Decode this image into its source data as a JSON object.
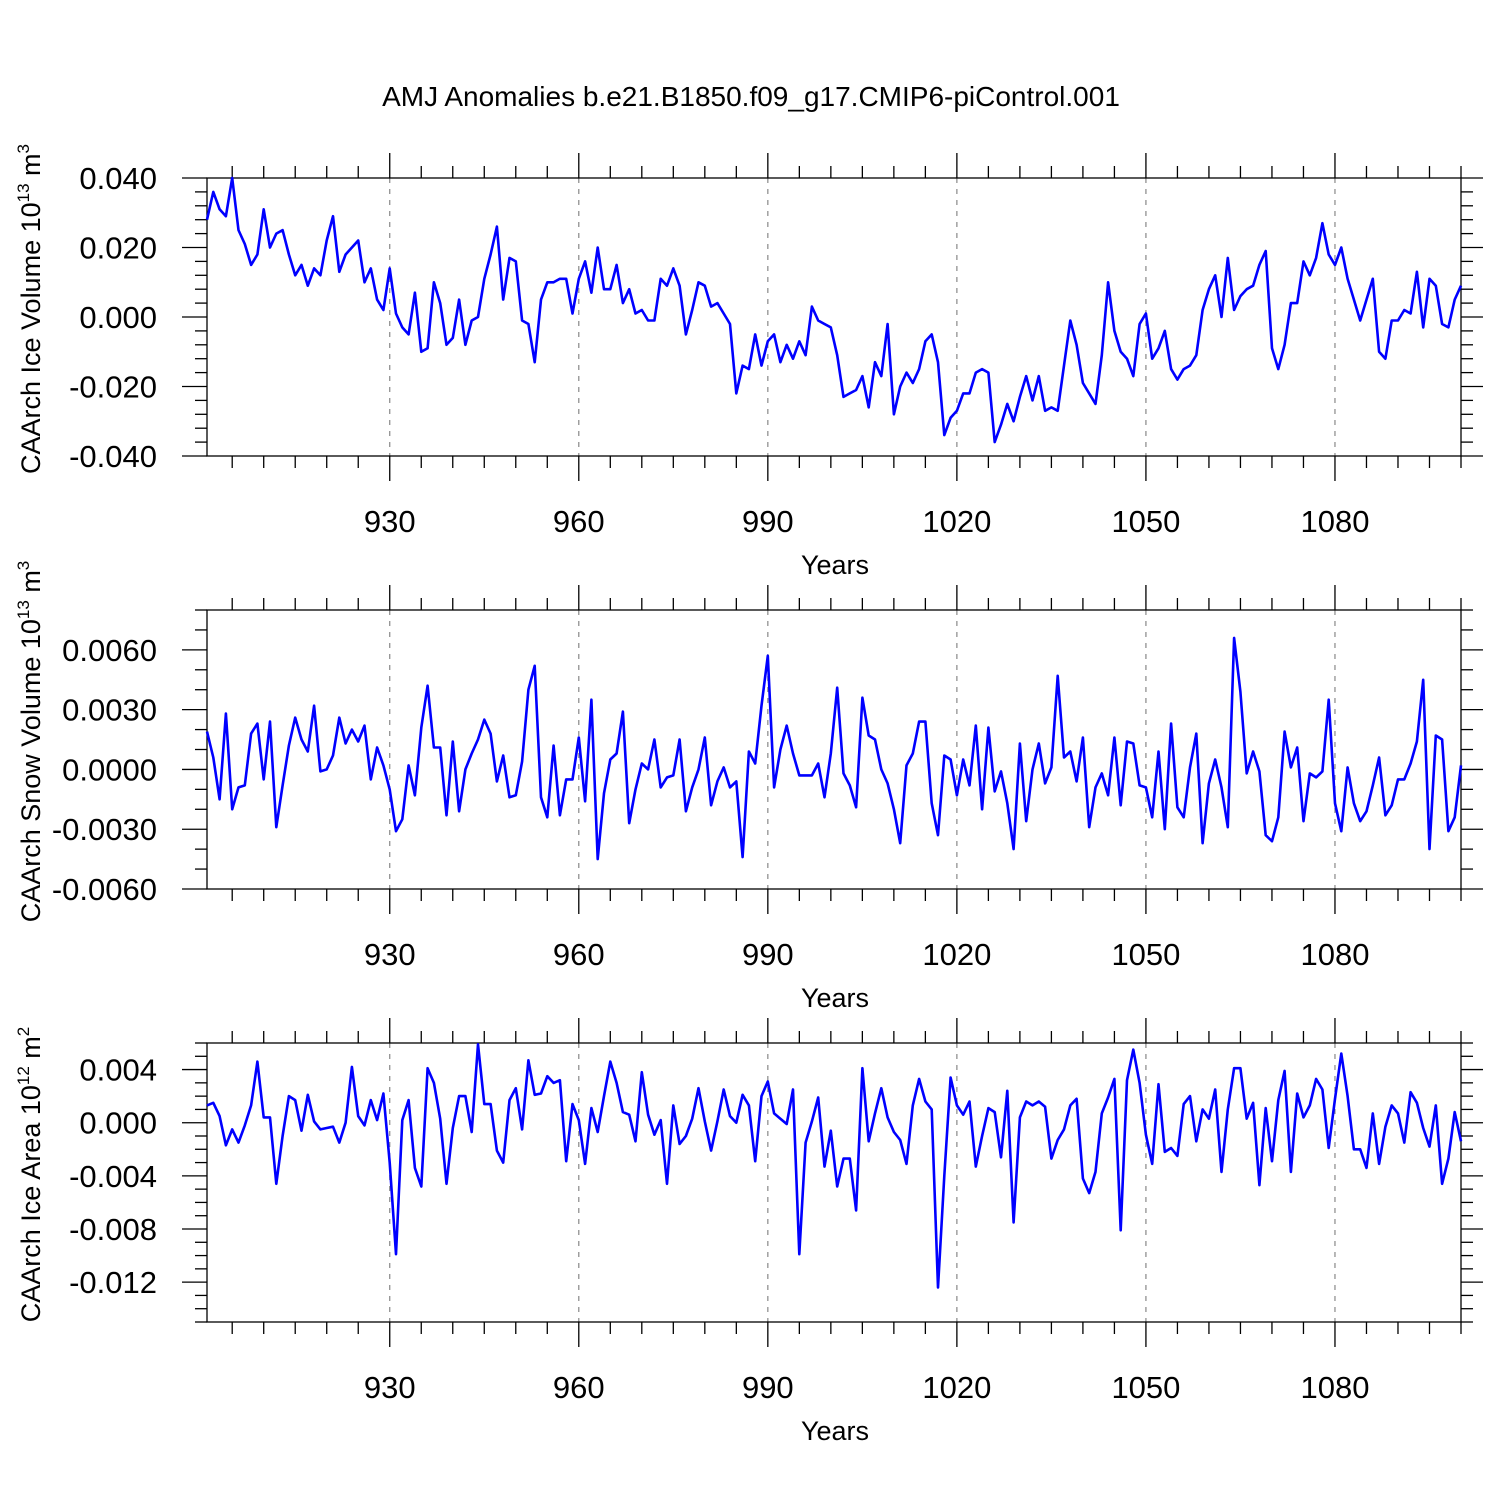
{
  "title": "AMJ Anomalies b.e21.B1850.f09_g17.CMIP6-piControl.001",
  "chart_data": [
    {
      "type": "line",
      "name": "ice-volume",
      "ylabel_main": "CAArch Ice Volume 10",
      "ylabel_sup": "13",
      "ylabel_unit": " m",
      "ylabel_unit_sup": "3",
      "xlabel": "Years",
      "xlim": [
        901,
        1100
      ],
      "xticks": [
        930,
        960,
        990,
        1020,
        1050,
        1080
      ],
      "ylim": [
        -0.04,
        0.04
      ],
      "yticks": [
        0.04,
        0.02,
        0.0,
        -0.02,
        -0.04
      ],
      "ytick_labels": [
        "0.040",
        "0.020",
        "0.000",
        "-0.020",
        "-0.040"
      ],
      "ytick_minor": 0.004,
      "grid": "vertical dashed at major x ticks",
      "color": "#0000ff",
      "x_start": 901,
      "values": [
        0.028,
        0.036,
        0.031,
        0.029,
        0.04,
        0.025,
        0.021,
        0.015,
        0.018,
        0.031,
        0.02,
        0.024,
        0.025,
        0.018,
        0.012,
        0.015,
        0.009,
        0.014,
        0.012,
        0.022,
        0.029,
        0.013,
        0.018,
        0.02,
        0.022,
        0.01,
        0.014,
        0.005,
        0.002,
        0.014,
        0.001,
        -0.003,
        -0.005,
        0.007,
        -0.01,
        -0.009,
        0.01,
        0.004,
        -0.008,
        -0.006,
        0.005,
        -0.008,
        -0.001,
        0.0,
        0.011,
        0.018,
        0.026,
        0.005,
        0.017,
        0.016,
        -0.001,
        -0.002,
        -0.013,
        0.005,
        0.01,
        0.01,
        0.011,
        0.011,
        0.001,
        0.011,
        0.016,
        0.007,
        0.02,
        0.008,
        0.008,
        0.015,
        0.004,
        0.008,
        0.001,
        0.002,
        -0.001,
        -0.001,
        0.011,
        0.009,
        0.014,
        0.009,
        -0.005,
        0.002,
        0.01,
        0.009,
        0.003,
        0.004,
        0.001,
        -0.002,
        -0.022,
        -0.014,
        -0.015,
        -0.005,
        -0.014,
        -0.007,
        -0.005,
        -0.013,
        -0.008,
        -0.012,
        -0.007,
        -0.011,
        0.003,
        -0.001,
        -0.002,
        -0.003,
        -0.011,
        -0.023,
        -0.022,
        -0.021,
        -0.017,
        -0.026,
        -0.013,
        -0.017,
        -0.002,
        -0.028,
        -0.02,
        -0.016,
        -0.019,
        -0.015,
        -0.007,
        -0.005,
        -0.013,
        -0.034,
        -0.029,
        -0.027,
        -0.022,
        -0.022,
        -0.016,
        -0.015,
        -0.016,
        -0.036,
        -0.031,
        -0.025,
        -0.03,
        -0.023,
        -0.017,
        -0.024,
        -0.017,
        -0.027,
        -0.026,
        -0.027,
        -0.014,
        -0.001,
        -0.008,
        -0.019,
        -0.022,
        -0.025,
        -0.011,
        0.01,
        -0.004,
        -0.01,
        -0.012,
        -0.017,
        -0.002,
        0.001,
        -0.012,
        -0.009,
        -0.004,
        -0.015,
        -0.018,
        -0.015,
        -0.014,
        -0.011,
        0.002,
        0.008,
        0.012,
        0.0,
        0.017,
        0.002,
        0.006,
        0.008,
        0.009,
        0.015,
        0.019,
        -0.009,
        -0.015,
        -0.008,
        0.004,
        0.004,
        0.016,
        0.012,
        0.017,
        0.027,
        0.018,
        0.015,
        0.02,
        0.011,
        0.005,
        -0.001,
        0.005,
        0.011,
        -0.01,
        -0.012,
        -0.001,
        -0.001,
        0.002,
        0.001,
        0.013,
        -0.003,
        0.011,
        0.009,
        -0.002,
        -0.003,
        0.005,
        0.009
      ]
    },
    {
      "type": "line",
      "name": "snow-volume",
      "ylabel_main": "CAArch Snow Volume 10",
      "ylabel_sup": "13",
      "ylabel_unit": " m",
      "ylabel_unit_sup": "3",
      "xlabel": "Years",
      "xlim": [
        901,
        1100
      ],
      "xticks": [
        930,
        960,
        990,
        1020,
        1050,
        1080
      ],
      "ylim": [
        -0.006,
        0.008
      ],
      "yticks": [
        0.006,
        0.003,
        0.0,
        -0.003,
        -0.006
      ],
      "ytick_labels": [
        "0.0060",
        "0.0030",
        "0.0000",
        "-0.0030",
        "-0.0060"
      ],
      "ytick_minor": 0.001,
      "grid": "vertical dashed at major x ticks",
      "color": "#0000ff",
      "x_start": 901,
      "values": [
        0.0019,
        0.0006,
        -0.0015,
        0.0028,
        -0.002,
        -0.0009,
        -0.0008,
        0.0018,
        0.0023,
        -0.0005,
        0.0024,
        -0.0029,
        -0.0008,
        0.0012,
        0.0026,
        0.0015,
        0.0009,
        0.0032,
        -0.0001,
        0.0,
        0.0007,
        0.0026,
        0.0013,
        0.002,
        0.0014,
        0.0022,
        -0.0005,
        0.0011,
        0.0002,
        -0.001,
        -0.0031,
        -0.0025,
        0.0002,
        -0.0013,
        0.0021,
        0.0042,
        0.0011,
        0.0011,
        -0.0023,
        0.0014,
        -0.0021,
        0.0,
        0.0008,
        0.0015,
        0.0025,
        0.0018,
        -0.0006,
        0.0007,
        -0.0014,
        -0.0013,
        0.0004,
        0.004,
        0.0052,
        -0.0014,
        -0.0024,
        0.0012,
        -0.0023,
        -0.0005,
        -0.0005,
        0.0016,
        -0.0016,
        0.0035,
        -0.0045,
        -0.0012,
        0.0005,
        0.0008,
        0.0029,
        -0.0027,
        -0.001,
        0.0003,
        0.0,
        0.0015,
        -0.0009,
        -0.0004,
        -0.0003,
        0.0015,
        -0.0021,
        -0.0009,
        0.0,
        0.0016,
        -0.0018,
        -0.0006,
        0.0001,
        -0.0009,
        -0.0006,
        -0.0044,
        0.0009,
        0.0003,
        0.0032,
        0.0057,
        -0.0009,
        0.001,
        0.0022,
        0.0008,
        -0.0003,
        -0.0003,
        -0.0003,
        0.0003,
        -0.0014,
        0.0008,
        0.0041,
        -0.0002,
        -0.0008,
        -0.0019,
        0.0036,
        0.0017,
        0.0015,
        0.0,
        -0.0007,
        -0.002,
        -0.0037,
        0.0002,
        0.0008,
        0.0024,
        0.0024,
        -0.0017,
        -0.0033,
        0.0007,
        0.0005,
        -0.0013,
        0.0005,
        -0.0008,
        0.0022,
        -0.002,
        0.0021,
        -0.0011,
        -0.0001,
        -0.0017,
        -0.004,
        0.0013,
        -0.0026,
        0.0,
        0.0013,
        -0.0007,
        0.0001,
        0.0047,
        0.0006,
        0.0009,
        -0.0006,
        0.0016,
        -0.0029,
        -0.0009,
        -0.0002,
        -0.0013,
        0.0016,
        -0.0018,
        0.0014,
        0.0013,
        -0.0008,
        -0.0009,
        -0.0024,
        0.0009,
        -0.003,
        0.0023,
        -0.0019,
        -0.0024,
        0.0001,
        0.0018,
        -0.0037,
        -0.0007,
        0.0005,
        -0.0009,
        -0.0029,
        0.0066,
        0.0039,
        -0.0002,
        0.0009,
        -0.0001,
        -0.0033,
        -0.0036,
        -0.0024,
        0.0019,
        0.0001,
        0.0011,
        -0.0026,
        -0.0002,
        -0.0004,
        -0.0001,
        0.0035,
        -0.0017,
        -0.0031,
        0.0001,
        -0.0017,
        -0.0026,
        -0.0021,
        -0.0008,
        0.0006,
        -0.0023,
        -0.0018,
        -0.0005,
        -0.0005,
        0.0003,
        0.0014,
        0.0045,
        -0.004,
        0.0017,
        0.0015,
        -0.0031,
        -0.0024,
        0.0002
      ]
    },
    {
      "type": "line",
      "name": "ice-area",
      "ylabel_main": "CAArch Ice Area 10",
      "ylabel_sup": "12",
      "ylabel_unit": " m",
      "ylabel_unit_sup": "2",
      "xlabel": "Years",
      "xlim": [
        901,
        1100
      ],
      "xticks": [
        930,
        960,
        990,
        1020,
        1050,
        1080
      ],
      "ylim": [
        -0.015,
        0.006
      ],
      "yticks": [
        0.004,
        0.0,
        -0.004,
        -0.008,
        -0.012
      ],
      "ytick_labels": [
        "0.004",
        "0.000",
        "-0.004",
        "-0.008",
        "-0.012"
      ],
      "ytick_minor": 0.001,
      "grid": "vertical dashed at major x ticks",
      "color": "#0000ff",
      "x_start": 901,
      "values": [
        0.0013,
        0.0015,
        0.0005,
        -0.0017,
        -0.0005,
        -0.0015,
        -0.0002,
        0.0013,
        0.0046,
        0.0004,
        0.0004,
        -0.0046,
        -0.001,
        0.002,
        0.0017,
        -0.0006,
        0.0021,
        0.0001,
        -0.0005,
        -0.0004,
        -0.0003,
        -0.0015,
        0.0,
        0.0042,
        0.0005,
        -0.0002,
        0.0017,
        0.0002,
        0.0022,
        -0.003,
        -0.0099,
        0.0002,
        0.0017,
        -0.0034,
        -0.0048,
        0.0041,
        0.003,
        0.0003,
        -0.0046,
        -0.0004,
        0.002,
        0.002,
        -0.0007,
        0.0059,
        0.0014,
        0.0014,
        -0.0021,
        -0.003,
        0.0017,
        0.0026,
        -0.0005,
        0.0047,
        0.0021,
        0.0022,
        0.0035,
        0.003,
        0.0032,
        -0.0029,
        0.0014,
        0.0002,
        -0.0031,
        0.0011,
        -0.0007,
        0.002,
        0.0046,
        0.003,
        0.0008,
        0.0006,
        -0.0014,
        0.0038,
        0.0006,
        -0.0009,
        0.0002,
        -0.0046,
        0.0013,
        -0.0016,
        -0.001,
        0.0003,
        0.0026,
        0.0001,
        -0.0021,
        0.0001,
        0.0025,
        0.0005,
        0.0,
        0.0021,
        0.0013,
        -0.0029,
        0.002,
        0.0031,
        0.0007,
        0.0003,
        -0.0001,
        0.0025,
        -0.0099,
        -0.0015,
        0.0001,
        0.0019,
        -0.0033,
        -0.0006,
        -0.0048,
        -0.0027,
        -0.0027,
        -0.0066,
        0.0041,
        -0.0014,
        0.0007,
        0.0026,
        0.0004,
        -0.0007,
        -0.0013,
        -0.0031,
        0.0013,
        0.0033,
        0.0016,
        0.001,
        -0.0124,
        -0.004,
        0.0034,
        0.0013,
        0.0006,
        0.0016,
        -0.0033,
        -0.001,
        0.0011,
        0.0008,
        -0.0026,
        0.0024,
        -0.0075,
        0.0004,
        0.0016,
        0.0013,
        0.0016,
        0.0012,
        -0.0027,
        -0.0013,
        -0.0005,
        0.0013,
        0.0018,
        -0.0042,
        -0.0053,
        -0.0037,
        0.0007,
        0.0019,
        0.0033,
        -0.0081,
        0.0032,
        0.0055,
        0.003,
        -0.0009,
        -0.0031,
        0.0029,
        -0.0022,
        -0.0019,
        -0.0025,
        0.0014,
        0.002,
        -0.0014,
        0.001,
        0.0003,
        0.0025,
        -0.0037,
        0.001,
        0.0041,
        0.0041,
        0.0003,
        0.0015,
        -0.0047,
        0.0011,
        -0.0029,
        0.0017,
        0.0039,
        -0.0037,
        0.0022,
        0.0004,
        0.0013,
        0.0033,
        0.0025,
        -0.0019,
        0.0018,
        0.0052,
        0.002,
        -0.002,
        -0.002,
        -0.0034,
        0.0007,
        -0.0031,
        -0.0003,
        0.0013,
        0.0007,
        -0.0015,
        0.0023,
        0.0015,
        -0.0004,
        -0.0018,
        0.0013,
        -0.0046,
        -0.0027,
        0.0008,
        -0.0014
      ]
    }
  ]
}
